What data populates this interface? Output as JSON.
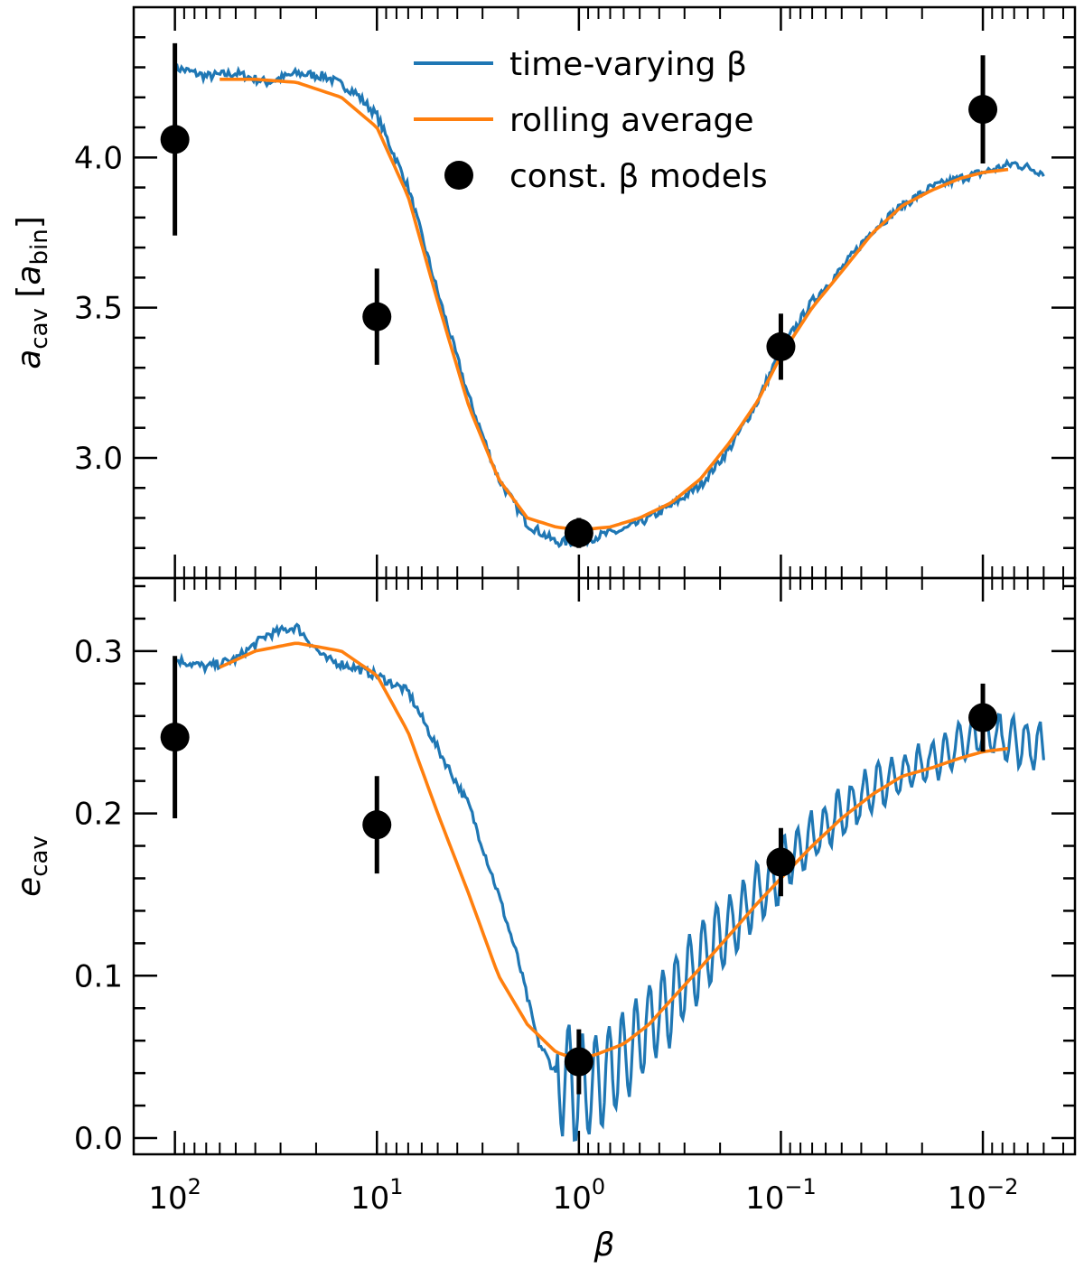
{
  "chart_data": [
    {
      "type": "line",
      "panel": "top",
      "ylabel": "a_cav [a_bin]",
      "ylabel_parts": {
        "var": "a",
        "var_sub": "cav",
        "unit": "a",
        "unit_sub": "bin"
      },
      "x_scale": "log",
      "x_reversed": true,
      "xlim": [
        160,
        0.0035
      ],
      "ylim": [
        2.6,
        4.5
      ],
      "y_ticks": [
        3.0,
        3.5,
        4.0
      ],
      "y_tick_labels": [
        "3.0",
        "3.5",
        "4.0"
      ],
      "grid": false,
      "legend_position": "top-center",
      "legend": {
        "time_varying": "time-varying β",
        "rolling": "rolling average",
        "const": "const. β models"
      },
      "series": [
        {
          "name": "time-varying β",
          "color": "#1f77b4",
          "style": "line",
          "x": [
            100,
            70,
            50,
            35,
            25,
            18,
            13,
            10,
            7,
            5,
            3.5,
            2.5,
            1.8,
            1.3,
            1.0,
            0.8,
            0.6,
            0.45,
            0.35,
            0.25,
            0.18,
            0.13,
            0.1,
            0.07,
            0.05,
            0.035,
            0.025,
            0.018,
            0.013,
            0.01,
            0.007,
            0.005
          ],
          "y": [
            4.3,
            4.27,
            4.28,
            4.25,
            4.28,
            4.27,
            4.22,
            4.14,
            3.9,
            3.55,
            3.2,
            2.93,
            2.78,
            2.72,
            2.72,
            2.74,
            2.76,
            2.8,
            2.84,
            2.91,
            3.03,
            3.19,
            3.36,
            3.52,
            3.63,
            3.76,
            3.84,
            3.9,
            3.93,
            3.95,
            3.98,
            3.95
          ]
        },
        {
          "name": "rolling average",
          "color": "#ff7f0e",
          "style": "line",
          "x": [
            60,
            40,
            25,
            15,
            10,
            7,
            5,
            3.5,
            2.5,
            1.8,
            1.3,
            1.0,
            0.7,
            0.5,
            0.35,
            0.25,
            0.18,
            0.13,
            0.1,
            0.07,
            0.05,
            0.035,
            0.025,
            0.018,
            0.013,
            0.01,
            0.0075
          ],
          "y": [
            4.26,
            4.26,
            4.25,
            4.2,
            4.1,
            3.87,
            3.52,
            3.17,
            2.93,
            2.8,
            2.77,
            2.76,
            2.77,
            2.8,
            2.85,
            2.93,
            3.05,
            3.19,
            3.34,
            3.5,
            3.62,
            3.75,
            3.84,
            3.89,
            3.93,
            3.95,
            3.96
          ]
        },
        {
          "name": "const. β models",
          "color": "#000000",
          "style": "errorbar",
          "x": [
            100,
            10,
            1,
            0.1,
            0.01
          ],
          "y": [
            4.06,
            3.47,
            2.75,
            3.37,
            4.16
          ],
          "yerr": [
            0.32,
            0.16,
            0.05,
            0.11,
            0.18
          ]
        }
      ]
    },
    {
      "type": "line",
      "panel": "bottom",
      "ylabel": "e_cav",
      "ylabel_parts": {
        "var": "e",
        "var_sub": "cav"
      },
      "xlabel": "β",
      "x_scale": "log",
      "x_reversed": true,
      "xlim": [
        160,
        0.0035
      ],
      "ylim": [
        -0.01,
        0.345
      ],
      "y_ticks": [
        0.0,
        0.1,
        0.2,
        0.3
      ],
      "y_tick_labels": [
        "0.0",
        "0.1",
        "0.2",
        "0.3"
      ],
      "x_ticks": [
        100,
        10,
        1,
        0.1,
        0.01
      ],
      "x_tick_labels": [
        {
          "base": "10",
          "exp": "2"
        },
        {
          "base": "10",
          "exp": "1"
        },
        {
          "base": "10",
          "exp": "0"
        },
        {
          "base": "10",
          "exp": "−1"
        },
        {
          "base": "10",
          "exp": "−2"
        }
      ],
      "grid": false,
      "series": [
        {
          "name": "time-varying β",
          "color": "#1f77b4",
          "style": "line",
          "x": [
            100,
            70,
            50,
            35,
            25,
            18,
            13,
            10,
            7,
            5,
            3.5,
            2.5,
            2.0,
            1.6,
            1.3,
            1.0,
            0.8,
            0.6,
            0.45,
            0.35,
            0.25,
            0.18,
            0.13,
            0.1,
            0.07,
            0.05,
            0.035,
            0.025,
            0.018,
            0.013,
            0.01,
            0.007,
            0.005
          ],
          "y": [
            0.295,
            0.29,
            0.295,
            0.31,
            0.315,
            0.295,
            0.29,
            0.285,
            0.275,
            0.24,
            0.205,
            0.15,
            0.11,
            0.06,
            0.04,
            0.03,
            0.035,
            0.05,
            0.07,
            0.085,
            0.11,
            0.13,
            0.15,
            0.165,
            0.185,
            0.2,
            0.215,
            0.225,
            0.232,
            0.242,
            0.25,
            0.245,
            0.24
          ],
          "oscillation_from_x": 1.0,
          "oscillation_amp": [
            0.035,
            0.03,
            0.028,
            0.026,
            0.024,
            0.022,
            0.02,
            0.018,
            0.016,
            0.015,
            0.014,
            0.013,
            0.012,
            0.012,
            0.012,
            0.013,
            0.014
          ]
        },
        {
          "name": "rolling average",
          "color": "#ff7f0e",
          "style": "line",
          "x": [
            60,
            40,
            25,
            15,
            10,
            7,
            5,
            3.5,
            2.5,
            1.8,
            1.3,
            1.0,
            0.8,
            0.6,
            0.45,
            0.35,
            0.25,
            0.18,
            0.13,
            0.1,
            0.07,
            0.05,
            0.035,
            0.025,
            0.018,
            0.013,
            0.01,
            0.0075
          ],
          "y": [
            0.29,
            0.3,
            0.305,
            0.3,
            0.285,
            0.25,
            0.2,
            0.15,
            0.1,
            0.07,
            0.053,
            0.048,
            0.052,
            0.058,
            0.07,
            0.085,
            0.105,
            0.125,
            0.145,
            0.16,
            0.18,
            0.197,
            0.212,
            0.223,
            0.228,
            0.234,
            0.238,
            0.24
          ]
        },
        {
          "name": "const. β models",
          "color": "#000000",
          "style": "errorbar",
          "x": [
            100,
            10,
            1,
            0.1,
            0.01
          ],
          "y": [
            0.247,
            0.193,
            0.047,
            0.17,
            0.259
          ],
          "yerr": [
            0.05,
            0.03,
            0.02,
            0.021,
            0.021
          ]
        }
      ]
    }
  ]
}
